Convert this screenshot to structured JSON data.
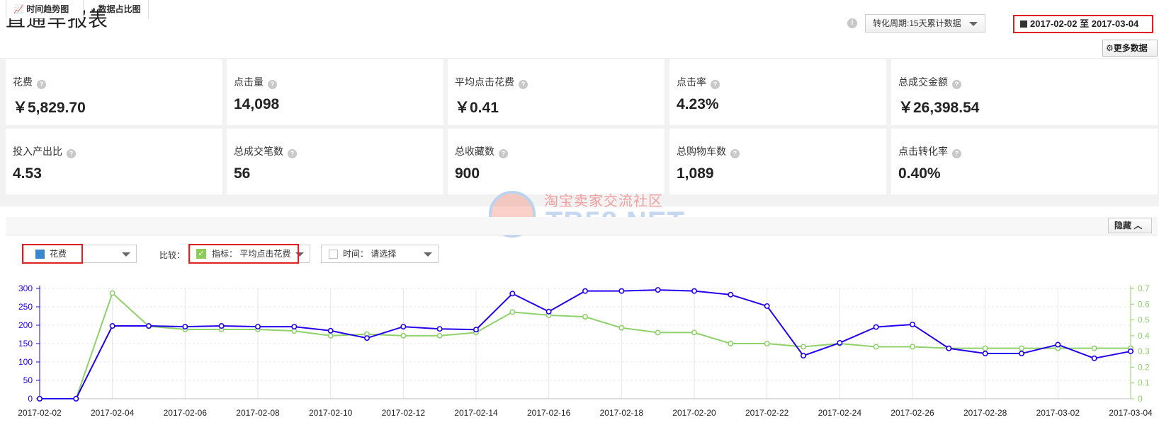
{
  "header": {
    "title": "直通车报表",
    "period_select": "转化周期:15天累计数据",
    "date_range": "2017-02-02 至 2017-03-04",
    "more_button": "更多数据"
  },
  "kpis": [
    {
      "label": "花费",
      "value": "￥5,829.70"
    },
    {
      "label": "点击量",
      "value": "14,098"
    },
    {
      "label": "平均点击花费",
      "value": "￥0.41"
    },
    {
      "label": "点击率",
      "value": "4.23%"
    },
    {
      "label": "总成交金额",
      "value": "￥26,398.54"
    },
    {
      "label": "投入产出比",
      "value": "4.53"
    },
    {
      "label": "总成交笔数",
      "value": "56"
    },
    {
      "label": "总收藏数",
      "value": "900"
    },
    {
      "label": "总购物车数",
      "value": "1,089"
    },
    {
      "label": "点击转化率",
      "value": "0.40%"
    }
  ],
  "watermark": {
    "cn": "淘宝卖家交流社区",
    "en": "TB58.NET"
  },
  "tabs": {
    "trend": "时间趋势图",
    "pie": "数据占比图",
    "hide": "隐藏"
  },
  "controls": {
    "metric": "花费",
    "compare_label": "比较：",
    "compare": "指标：  平均点击花费",
    "time": "时间：  请选择"
  },
  "colors": {
    "primary": "#2200ee",
    "secondary": "#8fd16a",
    "red_highlight": "#e02020"
  },
  "chart_data": {
    "type": "line",
    "x": [
      "2017-02-02",
      "2017-02-03",
      "2017-02-04",
      "2017-02-05",
      "2017-02-06",
      "2017-02-07",
      "2017-02-08",
      "2017-02-09",
      "2017-02-10",
      "2017-02-11",
      "2017-02-12",
      "2017-02-13",
      "2017-02-14",
      "2017-02-15",
      "2017-02-16",
      "2017-02-17",
      "2017-02-18",
      "2017-02-19",
      "2017-02-20",
      "2017-02-21",
      "2017-02-22",
      "2017-02-23",
      "2017-02-24",
      "2017-02-25",
      "2017-02-26",
      "2017-02-27",
      "2017-02-28",
      "2017-03-01",
      "2017-03-02",
      "2017-03-03",
      "2017-03-04"
    ],
    "x_tick_labels": [
      "2017-02-02",
      "2017-02-04",
      "2017-02-06",
      "2017-02-08",
      "2017-02-10",
      "2017-02-12",
      "2017-02-14",
      "2017-02-16",
      "2017-02-18",
      "2017-02-20",
      "2017-02-22",
      "2017-02-24",
      "2017-02-26",
      "2017-02-28",
      "2017-03-02",
      "2017-03-04"
    ],
    "series": [
      {
        "axis": "left",
        "color": "#2200ee",
        "values": [
          0,
          0,
          198,
          198,
          196,
          198,
          196,
          196,
          185,
          165,
          196,
          190,
          188,
          286,
          237,
          293,
          293,
          296,
          293,
          283,
          252,
          117,
          152,
          195,
          202,
          137,
          123,
          123,
          147,
          110,
          129
        ]
      },
      {
        "axis": "right",
        "color": "#8fd16a",
        "values": [
          0,
          0,
          0.67,
          0.46,
          0.44,
          0.44,
          0.44,
          0.43,
          0.4,
          0.41,
          0.4,
          0.4,
          0.42,
          0.55,
          0.53,
          0.52,
          0.45,
          0.42,
          0.42,
          0.35,
          0.35,
          0.33,
          0.35,
          0.33,
          0.33,
          0.32,
          0.32,
          0.32,
          0.32,
          0.32,
          0.32
        ]
      }
    ],
    "yleft": {
      "ticks": [
        0,
        50,
        100,
        150,
        200,
        250,
        300
      ],
      "range": [
        0,
        300
      ]
    },
    "yright": {
      "ticks": [
        0,
        0.1,
        0.2,
        0.3,
        0.4,
        0.5,
        0.6,
        0.7
      ],
      "range": [
        0,
        0.7
      ]
    },
    "grid": true
  }
}
